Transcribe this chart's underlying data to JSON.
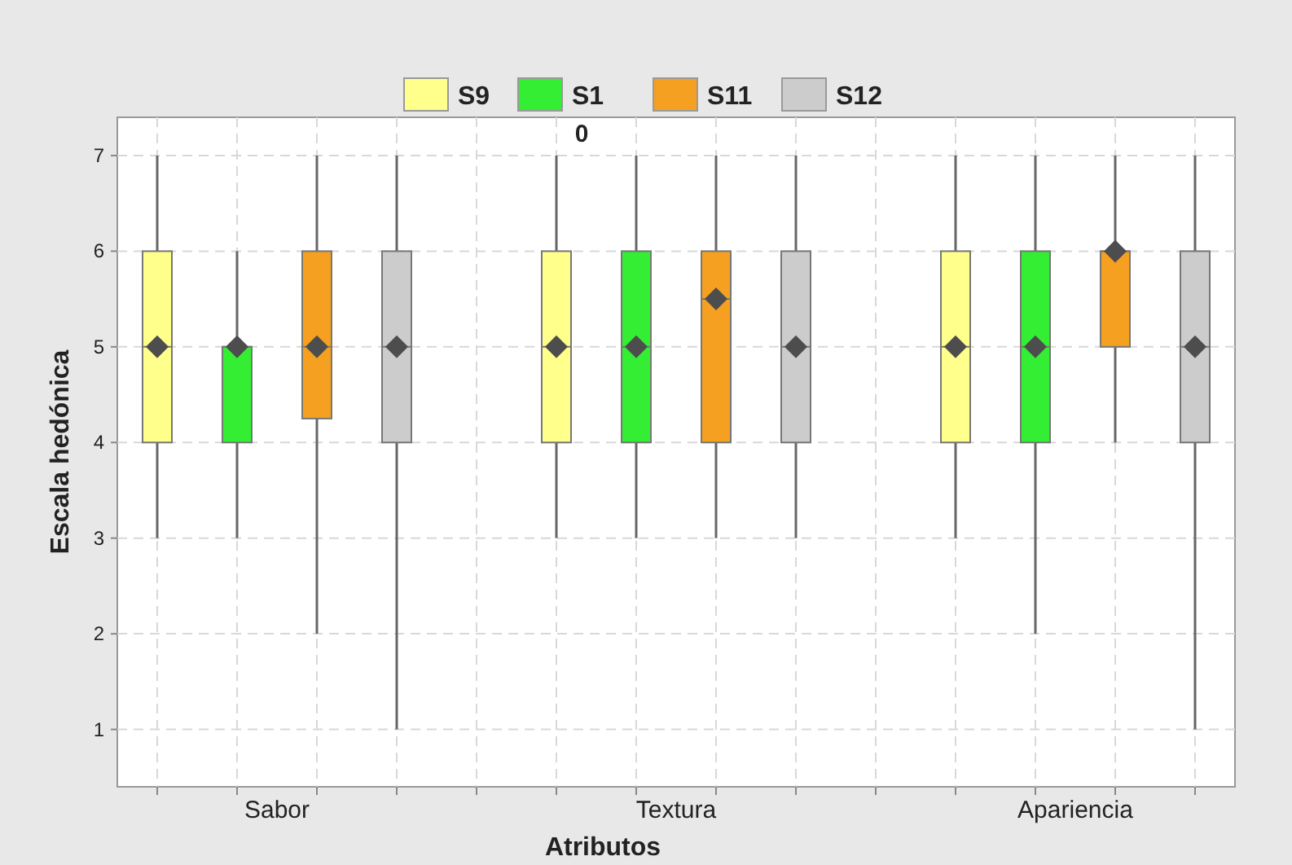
{
  "chart_data": {
    "type": "box",
    "xlabel": "Atributos",
    "ylabel": "Escala hedónica",
    "annotations": [
      "0"
    ],
    "categories": [
      "Sabor",
      "Textura",
      "Apariencia"
    ],
    "ylim": [
      0.4,
      7.4
    ],
    "yticks": [
      1,
      2,
      3,
      4,
      5,
      6,
      7
    ],
    "grid": true,
    "legend": "top",
    "series": [
      {
        "name": "S9",
        "color": "#ffff8c",
        "boxes": [
          {
            "low": 3,
            "q1": 4,
            "median": 5,
            "q3": 6,
            "high": 7,
            "mean": 5
          },
          {
            "low": 3,
            "q1": 4,
            "median": 5,
            "q3": 6,
            "high": 7,
            "mean": 5
          },
          {
            "low": 3,
            "q1": 4,
            "median": 5,
            "q3": 6,
            "high": 7,
            "mean": 5
          }
        ]
      },
      {
        "name": "S1",
        "color": "#33ee33",
        "boxes": [
          {
            "low": 3,
            "q1": 4,
            "median": 5,
            "q3": 5,
            "high": 6,
            "mean": 5
          },
          {
            "low": 3,
            "q1": 4,
            "median": 5,
            "q3": 6,
            "high": 7,
            "mean": 5
          },
          {
            "low": 2,
            "q1": 4,
            "median": 5,
            "q3": 6,
            "high": 7,
            "mean": 5
          }
        ]
      },
      {
        "name": "S11",
        "color": "#f5a020",
        "boxes": [
          {
            "low": 2,
            "q1": 4.25,
            "median": 5,
            "q3": 6,
            "high": 7,
            "mean": 5
          },
          {
            "low": 3,
            "q1": 4,
            "median": 5.5,
            "q3": 6,
            "high": 7,
            "mean": 5.5
          },
          {
            "low": 4,
            "q1": 5,
            "median": 6,
            "q3": 6,
            "high": 7,
            "mean": 6
          }
        ]
      },
      {
        "name": "S12",
        "color": "#cccccc",
        "boxes": [
          {
            "low": 1,
            "q1": 4,
            "median": 5,
            "q3": 6,
            "high": 7,
            "mean": 5
          },
          {
            "low": 3,
            "q1": 4,
            "median": 5,
            "q3": 6,
            "high": 7,
            "mean": 5
          },
          {
            "low": 1,
            "q1": 4,
            "median": 5,
            "q3": 6,
            "high": 7,
            "mean": 5
          }
        ]
      }
    ]
  }
}
